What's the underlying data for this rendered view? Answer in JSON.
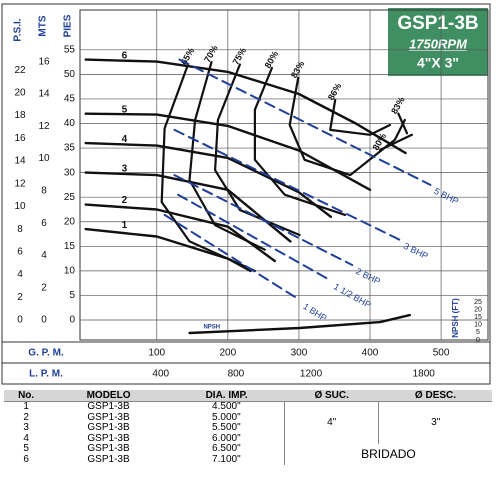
{
  "chart_data": {
    "type": "line",
    "title": "GSP1-3B",
    "subtitle": "1750RPM",
    "size_label": "4\"X 3\"",
    "x_label": "G. P. M.",
    "x2_label": "L. P. M.",
    "psi_label": "P.S.I.",
    "mts_label": "MTS",
    "y_label": "PIES",
    "y2_label": "NPSH (FT)",
    "xlim": [
      -8,
      566
    ],
    "xticks": [
      100,
      200,
      300,
      400,
      500
    ],
    "x2lim": [
      -30,
      2142
    ],
    "x2ticks": [
      400,
      800,
      1200,
      1800
    ],
    "ylim": [
      -4.07,
      63.1
    ],
    "yticks": [
      0,
      5,
      10,
      15,
      20,
      25,
      30,
      35,
      40,
      45,
      50,
      55
    ],
    "psilim": [
      -1.76,
      27.3
    ],
    "psiticks": [
      0,
      2,
      4,
      6,
      8,
      10,
      12,
      14,
      16,
      18,
      20,
      22
    ],
    "mtslim": [
      -1.24,
      19.2
    ],
    "mtsticks": [
      0,
      2,
      4,
      6,
      8,
      10,
      12,
      14,
      16
    ],
    "y2lim": [
      0,
      217
    ],
    "y2ticks": [
      0,
      5,
      10,
      15,
      20,
      25
    ],
    "grid": true,
    "series": [
      {
        "name": "6",
        "style": "impeller",
        "color": "#111111",
        "x": [
          0,
          100,
          200,
          300,
          380,
          450
        ],
        "values": [
          53,
          52.6,
          50.5,
          46,
          40,
          34
        ]
      },
      {
        "name": "5",
        "style": "impeller",
        "color": "#111111",
        "x": [
          0,
          100,
          200,
          300,
          400
        ],
        "values": [
          42,
          41.8,
          39.5,
          34.5,
          26.5
        ]
      },
      {
        "name": "4",
        "style": "impeller",
        "color": "#111111",
        "x": [
          0,
          100,
          200,
          300,
          345
        ],
        "values": [
          36,
          35.5,
          33,
          26,
          21
        ]
      },
      {
        "name": "3",
        "style": "impeller",
        "color": "#111111",
        "x": [
          0,
          100,
          200,
          288
        ],
        "values": [
          30,
          29.5,
          26.5,
          16
        ]
      },
      {
        "name": "2",
        "style": "impeller",
        "color": "#111111",
        "x": [
          0,
          100,
          200,
          266
        ],
        "values": [
          23.5,
          22.5,
          19,
          12
        ]
      },
      {
        "name": "1",
        "style": "impeller",
        "color": "#111111",
        "x": [
          0,
          100,
          200,
          232
        ],
        "values": [
          18.5,
          17,
          12.5,
          10
        ]
      },
      {
        "name": "65%",
        "style": "efficiency",
        "color": "#111111",
        "x": [
          144,
          111,
          107,
          146,
          238
        ],
        "values": [
          52,
          39,
          24,
          16,
          10
        ]
      },
      {
        "name": "70%",
        "style": "efficiency",
        "color": "#111111",
        "x": [
          177,
          154,
          146,
          182,
          252
        ],
        "values": [
          52.5,
          40.7,
          28.5,
          19.3,
          14.3
        ]
      },
      {
        "name": "75%",
        "style": "efficiency",
        "color": "#111111",
        "x": [
          217,
          186,
          182,
          217,
          301
        ],
        "values": [
          52,
          40.7,
          30.5,
          22.4,
          17.3
        ]
      },
      {
        "name": "80%",
        "style": "efficiency",
        "color": "#111111",
        "x": [
          262,
          238,
          238,
          280,
          365
        ],
        "values": [
          51.3,
          42.8,
          32.6,
          25.5,
          21.4
        ]
      },
      {
        "name": "83%",
        "style": "efficiency",
        "color": "#111111",
        "x": [
          299,
          287,
          308,
          372,
          435,
          449
        ],
        "values": [
          49.3,
          39.7,
          32.6,
          29.5,
          36.7,
          40.7
        ]
      },
      {
        "name": "86%",
        "style": "efficiency",
        "color": "#111111",
        "x": [
          351,
          344,
          400,
          428
        ],
        "values": [
          44.8,
          38.7,
          37.7,
          39.7
        ]
      },
      {
        "name": "83%",
        "style": "efficiency",
        "color": "#111111",
        "x": [
          440,
          452
        ],
        "values": [
          42,
          38
        ]
      },
      {
        "name": "80%",
        "style": "efficiency",
        "color": "#111111",
        "x": [
          414,
          459
        ],
        "values": [
          34.6,
          37.7
        ]
      },
      {
        "name": "5 BHP",
        "style": "bhp",
        "color": "#1f3f99",
        "x": [
          132,
          485
        ],
        "values": [
          53,
          27.5
        ]
      },
      {
        "name": "3 BHP",
        "style": "bhp",
        "color": "#1f3f99",
        "x": [
          125,
          442
        ],
        "values": [
          38.7,
          16.3
        ]
      },
      {
        "name": "2 BHP",
        "style": "bhp",
        "color": "#1f3f99",
        "x": [
          125,
          375
        ],
        "values": [
          29.5,
          11.2
        ]
      },
      {
        "name": "1 1/2 BHP",
        "style": "bhp",
        "color": "#1f3f99",
        "x": [
          130,
          344
        ],
        "values": [
          25.5,
          8.1
        ]
      },
      {
        "name": "1 BHP",
        "style": "bhp",
        "color": "#1f3f99",
        "x": [
          111,
          301
        ],
        "values": [
          21.4,
          4.1
        ]
      },
      {
        "name": "NPSH",
        "style": "npsh",
        "axis": "y2",
        "color": "#111111",
        "x": [
          146,
          301,
          414,
          456
        ],
        "values": [
          4.6,
          7.9,
          11.8,
          16.4
        ]
      }
    ]
  },
  "table": {
    "headers": [
      "No.",
      "MODELO",
      "DIA. IMP.",
      "Ø SUC.",
      "Ø DESC."
    ],
    "rows": [
      [
        "1",
        "GSP1-3B",
        "4.500\""
      ],
      [
        "2",
        "GSP1-3B",
        "5.000\""
      ],
      [
        "3",
        "GSP1-3B",
        "5.500\""
      ],
      [
        "4",
        "GSP1-3B",
        "6.000\""
      ],
      [
        "5",
        "GSP1-3B",
        "6.500\""
      ],
      [
        "6",
        "GSP1-3B",
        "7.100\""
      ]
    ],
    "suction": "4\"",
    "discharge": "3\"",
    "connection": "BRIDADO"
  }
}
